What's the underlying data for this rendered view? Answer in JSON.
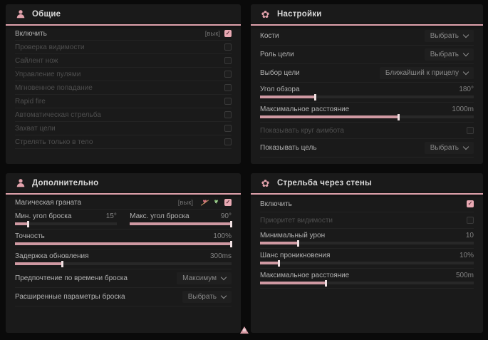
{
  "colors": {
    "accent": "#dfa2ac",
    "panel_bg": "#1a1a1a",
    "page_bg": "#0a0a0a"
  },
  "icons": {
    "general": "person-icon",
    "settings": "gear-flower-icon",
    "additional": "person-icon",
    "walls": "gear-flower-icon",
    "gear_glyph": "✿"
  },
  "panel_general": {
    "title": "Общие",
    "rows": {
      "enable": {
        "label": "Включить",
        "tag": "[вык]",
        "checked": true
      },
      "vis_check": {
        "label": "Проверка видимости",
        "checked": false
      },
      "silent_knife": {
        "label": "Сайлент нож",
        "checked": false
      },
      "bullet_control": {
        "label": "Управление пулями",
        "checked": false
      },
      "instant_hit": {
        "label": "Мгновенное попадание",
        "checked": false
      },
      "rapid_fire": {
        "label": "Rapid fire",
        "checked": false
      },
      "auto_fire": {
        "label": "Автоматическая стрельба",
        "checked": false
      },
      "target_lock": {
        "label": "Захват цели",
        "checked": false
      },
      "body_only": {
        "label": "Стрелять только в тело",
        "checked": false
      }
    }
  },
  "panel_settings": {
    "title": "Настройки",
    "rows": {
      "bones": {
        "label": "Кости",
        "value": "Выбрать"
      },
      "target_role": {
        "label": "Роль цели",
        "value": "Выбрать"
      },
      "target_select": {
        "label": "Выбор цели",
        "value": "Ближайший к прицелу"
      },
      "fov": {
        "label": "Угол обзора",
        "value": "180°",
        "fill": 26
      },
      "max_distance": {
        "label": "Максимальное расстояние",
        "value": "1000m",
        "fill": 65
      },
      "show_circle": {
        "label": "Показывать круг аимбота",
        "checked": false
      },
      "show_target": {
        "label": "Показывать цель",
        "value": "Выбрать"
      }
    }
  },
  "panel_additional": {
    "title": "Дополнительно",
    "rows": {
      "magic_grenade": {
        "label": "Магическая граната",
        "tag": "[вык]",
        "checked": true
      },
      "min_angle": {
        "label": "Мин. угол броска",
        "value": "15°",
        "fill": 13
      },
      "max_angle": {
        "label": "Макс. угол броска",
        "value": "90°",
        "fill": 100
      },
      "accuracy": {
        "label": "Точность",
        "value": "100%",
        "fill": 100
      },
      "update_delay": {
        "label": "Задержка обновления",
        "value": "300ms",
        "fill": 22
      },
      "throw_time": {
        "label": "Предпочтение по времени броска",
        "value": "Максимум"
      },
      "advanced": {
        "label": "Расширенные параметры броска",
        "value": "Выбрать"
      }
    }
  },
  "panel_walls": {
    "title": "Стрельба через стены",
    "rows": {
      "enable": {
        "label": "Включить",
        "checked": true
      },
      "vis_priority": {
        "label": "Приоритет видимости",
        "checked": false
      },
      "min_damage": {
        "label": "Минимальный урон",
        "value": "10",
        "fill": 18
      },
      "penetration": {
        "label": "Шанс проникновения",
        "value": "10%",
        "fill": 9
      },
      "max_distance": {
        "label": "Максимальное расстояние",
        "value": "500m",
        "fill": 31
      }
    }
  }
}
